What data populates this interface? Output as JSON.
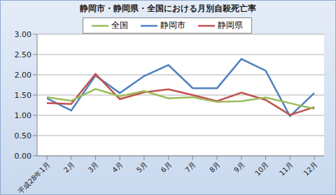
{
  "chart_data": {
    "type": "line",
    "title": "静岡市・静岡県・全国における月別自殺死亡率",
    "categories": [
      "平成28年1月",
      "2月",
      "3月",
      "4月",
      "5月",
      "6月",
      "7月",
      "8月",
      "9月",
      "10月",
      "11月",
      "12月"
    ],
    "series": [
      {
        "name": "静岡市",
        "color": "#4f81bd",
        "values": [
          1.42,
          1.12,
          1.98,
          1.55,
          1.97,
          2.24,
          1.67,
          1.67,
          2.39,
          2.1,
          0.98,
          1.55
        ]
      },
      {
        "name": "静岡県",
        "color": "#c0504d",
        "values": [
          1.3,
          1.28,
          2.02,
          1.4,
          1.57,
          1.64,
          1.5,
          1.35,
          1.56,
          1.38,
          1.01,
          1.2
        ]
      },
      {
        "name": "全国",
        "color": "#9bbb59",
        "values": [
          1.45,
          1.36,
          1.65,
          1.47,
          1.6,
          1.42,
          1.45,
          1.33,
          1.35,
          1.44,
          1.3,
          1.16
        ]
      }
    ],
    "ylim": [
      0,
      3
    ],
    "yticks": [
      {
        "value": 0,
        "label": "0.00"
      },
      {
        "value": 0.5,
        "label": "0.50"
      },
      {
        "value": 1,
        "label": "1.00"
      },
      {
        "value": 1.5,
        "label": "1.50"
      },
      {
        "value": 2,
        "label": "2.00"
      },
      {
        "value": 2.5,
        "label": "2.50"
      },
      {
        "value": 3,
        "label": "3.00"
      }
    ],
    "grid": true,
    "legend": "top"
  }
}
